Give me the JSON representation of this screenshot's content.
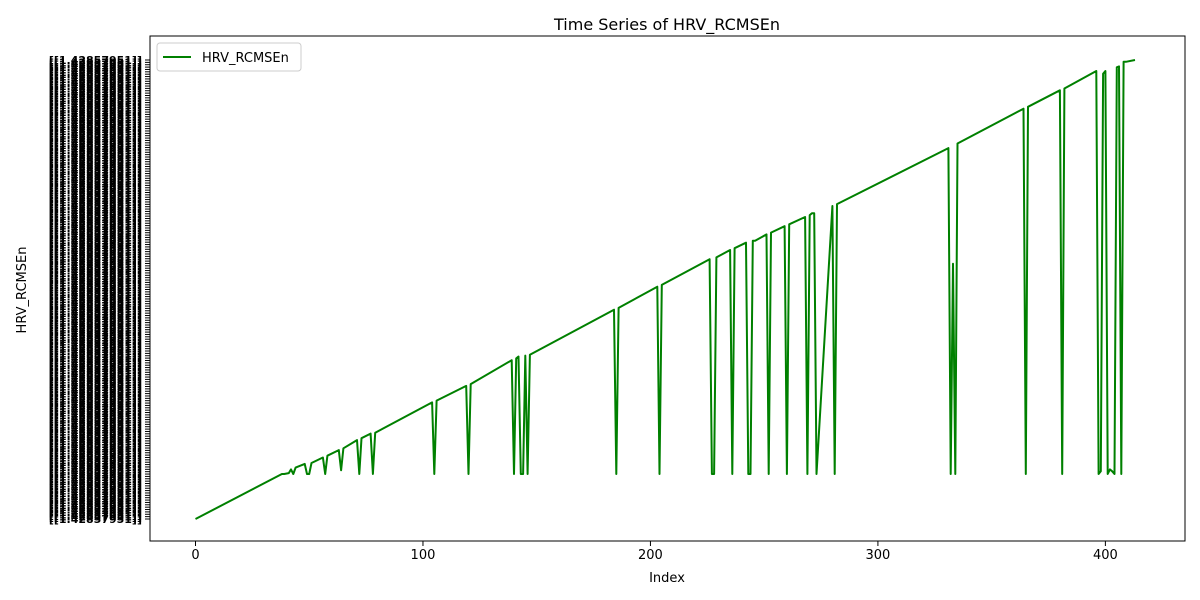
{
  "chart_data": {
    "type": "line",
    "title": "Time Series of HRV_RCMSEn",
    "xlabel": "Index",
    "ylabel": "HRV_RCMSEn",
    "xlim": [
      -20,
      435
    ],
    "ylim": [
      0,
      1
    ],
    "xticks": [
      0,
      100,
      200,
      300,
      400
    ],
    "yticks_note": "y axis is categorical: ~195 overlapping unreadable string tick labels of the form \"[[1.###...]]\"",
    "ytick_count": 195,
    "ytick_label_sample": "[[1.42857951]]",
    "grid": false,
    "legend_position": "top-left",
    "series": [
      {
        "name": "HRV_RCMSEn",
        "color": "#008000",
        "x": [
          0,
          38,
          39,
          41,
          42,
          43,
          44,
          48,
          49,
          50,
          51,
          56,
          57,
          58,
          63,
          64,
          65,
          71,
          72,
          73,
          77,
          78,
          79,
          104,
          105,
          106,
          119,
          120,
          121,
          139,
          140,
          141,
          142,
          143,
          144,
          145,
          146,
          147,
          184,
          185,
          186,
          203,
          204,
          205,
          226,
          227,
          228,
          229,
          235,
          236,
          237,
          242,
          243,
          244,
          245,
          246,
          251,
          252,
          253,
          259,
          260,
          261,
          268,
          269,
          270,
          271,
          272,
          273,
          280,
          281,
          282,
          331,
          332,
          333,
          334,
          335,
          364,
          365,
          366,
          380,
          381,
          382,
          396,
          397,
          398,
          399,
          400,
          401,
          402,
          403,
          404,
          405,
          406,
          407,
          408,
          409,
          413
        ],
        "y": [
          0.0,
          0.098,
          0.098,
          0.1,
          0.108,
          0.098,
          0.112,
          0.12,
          0.098,
          0.098,
          0.122,
          0.134,
          0.098,
          0.138,
          0.15,
          0.106,
          0.154,
          0.172,
          0.098,
          0.176,
          0.186,
          0.098,
          0.188,
          0.254,
          0.098,
          0.258,
          0.29,
          0.098,
          0.294,
          0.346,
          0.098,
          0.35,
          0.354,
          0.098,
          0.098,
          0.356,
          0.098,
          0.358,
          0.456,
          0.098,
          0.46,
          0.506,
          0.098,
          0.51,
          0.566,
          0.098,
          0.098,
          0.57,
          0.586,
          0.098,
          0.59,
          0.602,
          0.098,
          0.098,
          0.606,
          0.606,
          0.62,
          0.098,
          0.624,
          0.638,
          0.098,
          0.642,
          0.658,
          0.098,
          0.662,
          0.666,
          0.666,
          0.098,
          0.682,
          0.098,
          0.686,
          0.808,
          0.098,
          0.556,
          0.098,
          0.818,
          0.894,
          0.098,
          0.898,
          0.934,
          0.098,
          0.938,
          0.976,
          0.098,
          0.104,
          0.97,
          0.976,
          0.098,
          0.108,
          0.104,
          0.098,
          0.984,
          0.986,
          0.098,
          0.996,
          0.996,
          1.0
        ]
      }
    ]
  }
}
